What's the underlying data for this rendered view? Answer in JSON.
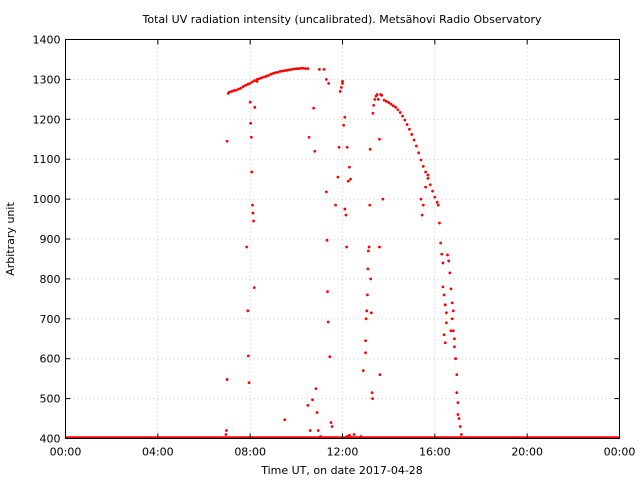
{
  "chart_data": {
    "type": "scatter",
    "title": "Total UV radiation intensity (uncalibrated). Metsähovi Radio Observatory",
    "xlabel": "Time UT, on date 2017-04-28",
    "ylabel": "Arbitrary unit",
    "x_unit": "hours UT",
    "xlim": [
      0,
      24
    ],
    "ylim": [
      400,
      1400
    ],
    "xticks": [
      0,
      4,
      8,
      12,
      16,
      20,
      24
    ],
    "xtick_labels": [
      "00:00",
      "04:00",
      "08:00",
      "12:00",
      "16:00",
      "20:00",
      "00:00"
    ],
    "yticks": [
      400,
      500,
      600,
      700,
      800,
      900,
      1000,
      1100,
      1200,
      1300,
      1400
    ],
    "ytick_labels": [
      "400",
      "500",
      "600",
      "700",
      "800",
      "900",
      "1000",
      "1100",
      "1200",
      "1300",
      "1400"
    ],
    "grid": true,
    "legend": "none",
    "series_color": "#ff0000",
    "baseline_value": 400,
    "baseline_x_range": [
      0,
      24
    ],
    "points": [
      [
        6.95,
        410
      ],
      [
        6.97,
        420
      ],
      [
        7.0,
        548
      ],
      [
        7.0,
        1145
      ],
      [
        7.05,
        1265
      ],
      [
        7.1,
        1268
      ],
      [
        7.2,
        1270
      ],
      [
        7.3,
        1272
      ],
      [
        7.4,
        1273
      ],
      [
        7.5,
        1276
      ],
      [
        7.6,
        1278
      ],
      [
        7.7,
        1282
      ],
      [
        7.8,
        1285
      ],
      [
        7.9,
        1288
      ],
      [
        8.0,
        1290
      ],
      [
        8.1,
        1294
      ],
      [
        8.2,
        1297
      ],
      [
        8.3,
        1300
      ],
      [
        8.4,
        1302
      ],
      [
        8.5,
        1304
      ],
      [
        8.6,
        1306
      ],
      [
        8.7,
        1308
      ],
      [
        8.8,
        1310
      ],
      [
        8.9,
        1313
      ],
      [
        9.0,
        1315
      ],
      [
        9.1,
        1317
      ],
      [
        9.2,
        1318
      ],
      [
        9.3,
        1320
      ],
      [
        9.4,
        1321
      ],
      [
        9.5,
        1322
      ],
      [
        9.6,
        1323
      ],
      [
        9.7,
        1324
      ],
      [
        9.8,
        1325
      ],
      [
        9.9,
        1326
      ],
      [
        10.0,
        1327
      ],
      [
        10.1,
        1327
      ],
      [
        10.2,
        1328
      ],
      [
        10.3,
        1328
      ],
      [
        10.4,
        1327
      ],
      [
        10.5,
        1327
      ],
      [
        7.85,
        880
      ],
      [
        7.9,
        720
      ],
      [
        7.92,
        607
      ],
      [
        7.95,
        540
      ],
      [
        8.0,
        1243
      ],
      [
        8.02,
        1190
      ],
      [
        8.05,
        1155
      ],
      [
        8.07,
        1068
      ],
      [
        8.1,
        985
      ],
      [
        8.12,
        965
      ],
      [
        8.15,
        945
      ],
      [
        8.18,
        778
      ],
      [
        8.2,
        1230
      ],
      [
        8.3,
        1295
      ],
      [
        9.5,
        447
      ],
      [
        10.5,
        483
      ],
      [
        10.55,
        1155
      ],
      [
        10.6,
        420
      ],
      [
        10.7,
        497
      ],
      [
        10.75,
        1228
      ],
      [
        10.8,
        1120
      ],
      [
        10.85,
        525
      ],
      [
        10.9,
        465
      ],
      [
        10.95,
        420
      ],
      [
        11.0,
        1325
      ],
      [
        11.05,
        405
      ],
      [
        11.2,
        1325
      ],
      [
        11.3,
        1300
      ],
      [
        11.3,
        1018
      ],
      [
        11.33,
        897
      ],
      [
        11.35,
        768
      ],
      [
        11.38,
        692
      ],
      [
        11.4,
        1290
      ],
      [
        11.45,
        605
      ],
      [
        11.5,
        440
      ],
      [
        11.55,
        430
      ],
      [
        11.7,
        985
      ],
      [
        11.8,
        1055
      ],
      [
        11.85,
        1130
      ],
      [
        11.9,
        1270
      ],
      [
        11.95,
        1280
      ],
      [
        12.0,
        1290
      ],
      [
        12.0,
        1295
      ],
      [
        12.05,
        1185
      ],
      [
        12.1,
        1205
      ],
      [
        12.1,
        975
      ],
      [
        12.15,
        960
      ],
      [
        12.18,
        880
      ],
      [
        12.2,
        1130
      ],
      [
        12.25,
        1045
      ],
      [
        12.3,
        1080
      ],
      [
        12.35,
        1050
      ],
      [
        12.5,
        410
      ],
      [
        12.8,
        405
      ],
      [
        12.9,
        570
      ],
      [
        13.0,
        645
      ],
      [
        13.0,
        615
      ],
      [
        13.02,
        700
      ],
      [
        13.05,
        720
      ],
      [
        13.08,
        760
      ],
      [
        13.1,
        825
      ],
      [
        13.12,
        870
      ],
      [
        13.15,
        880
      ],
      [
        13.18,
        985
      ],
      [
        13.2,
        1125
      ],
      [
        13.22,
        800
      ],
      [
        13.25,
        715
      ],
      [
        13.28,
        515
      ],
      [
        13.3,
        500
      ],
      [
        13.32,
        1215
      ],
      [
        13.35,
        1235
      ],
      [
        13.4,
        1250
      ],
      [
        13.45,
        1258
      ],
      [
        13.5,
        1262
      ],
      [
        13.55,
        1250
      ],
      [
        13.6,
        1150
      ],
      [
        13.6,
        880
      ],
      [
        13.62,
        560
      ],
      [
        13.65,
        1262
      ],
      [
        13.7,
        1260
      ],
      [
        13.75,
        1000
      ],
      [
        13.8,
        1248
      ],
      [
        13.9,
        1245
      ],
      [
        14.0,
        1242
      ],
      [
        14.1,
        1238
      ],
      [
        14.2,
        1234
      ],
      [
        14.3,
        1230
      ],
      [
        14.4,
        1224
      ],
      [
        14.5,
        1217
      ],
      [
        14.6,
        1208
      ],
      [
        14.7,
        1198
      ],
      [
        14.8,
        1187
      ],
      [
        14.9,
        1175
      ],
      [
        15.0,
        1162
      ],
      [
        15.1,
        1148
      ],
      [
        15.2,
        1133
      ],
      [
        15.3,
        1116
      ],
      [
        15.4,
        1098
      ],
      [
        15.5,
        1082
      ],
      [
        15.6,
        1068
      ],
      [
        15.7,
        1052
      ],
      [
        15.8,
        1036
      ],
      [
        15.9,
        1020
      ],
      [
        16.0,
        1005
      ],
      [
        16.1,
        992
      ],
      [
        16.15,
        985
      ],
      [
        15.4,
        1000
      ],
      [
        15.5,
        985
      ],
      [
        15.45,
        960
      ],
      [
        15.6,
        1030
      ],
      [
        15.7,
        1060
      ],
      [
        16.2,
        940
      ],
      [
        16.25,
        890
      ],
      [
        16.3,
        862
      ],
      [
        16.35,
        840
      ],
      [
        16.35,
        780
      ],
      [
        16.4,
        760
      ],
      [
        16.45,
        735
      ],
      [
        16.5,
        715
      ],
      [
        16.5,
        690
      ],
      [
        16.55,
        860
      ],
      [
        16.6,
        845
      ],
      [
        16.65,
        815
      ],
      [
        16.7,
        775
      ],
      [
        16.75,
        740
      ],
      [
        16.8,
        720
      ],
      [
        16.8,
        670
      ],
      [
        16.85,
        650
      ],
      [
        16.85,
        630
      ],
      [
        16.9,
        600
      ],
      [
        16.95,
        560
      ],
      [
        16.95,
        515
      ],
      [
        17.0,
        490
      ],
      [
        17.0,
        460
      ],
      [
        17.05,
        450
      ],
      [
        17.1,
        430
      ],
      [
        17.15,
        410
      ],
      [
        16.4,
        660
      ],
      [
        16.45,
        640
      ],
      [
        16.7,
        670
      ],
      [
        16.75,
        700
      ],
      [
        12.2,
        405
      ],
      [
        12.3,
        408
      ],
      [
        12.4,
        402
      ]
    ]
  }
}
